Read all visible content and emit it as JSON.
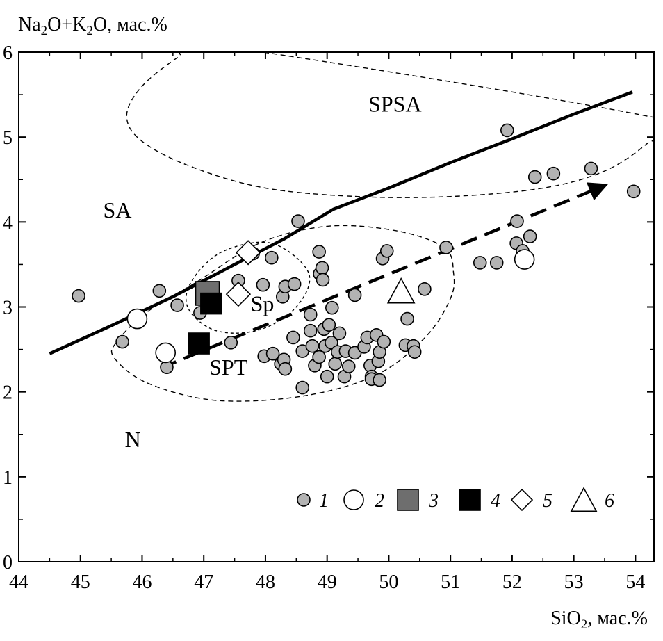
{
  "chart_data": {
    "type": "scatter",
    "xlabel": {
      "main": "SiO",
      "sub": "2",
      "rest": ", мас.%"
    },
    "ylabel": {
      "p1": "Na",
      "s1": "2",
      "p2": "O+K",
      "s2": "2",
      "p3": "O, мас.%"
    },
    "xlim": [
      44,
      54.3
    ],
    "ylim": [
      0,
      6
    ],
    "xticks": [
      "44",
      "45",
      "46",
      "47",
      "48",
      "49",
      "50",
      "51",
      "52",
      "53",
      "54"
    ],
    "yticks": [
      "0",
      "1",
      "2",
      "3",
      "4",
      "5",
      "6"
    ],
    "grid": false,
    "legend_position": "bottom-right",
    "region_labels": [
      {
        "text": "SPSA",
        "x": 50.1,
        "y": 5.3
      },
      {
        "text": "SA",
        "x": 45.6,
        "y": 4.05
      },
      {
        "text": "N",
        "x": 45.85,
        "y": 1.35
      },
      {
        "text": "SPT",
        "x": 47.4,
        "y": 2.2
      },
      {
        "text": "Sp",
        "x": 47.95,
        "y": 2.95
      }
    ],
    "boundary_line": [
      [
        44.5,
        2.45
      ],
      [
        45.5,
        2.78
      ],
      [
        46.5,
        3.12
      ],
      [
        47.5,
        3.5
      ],
      [
        48.3,
        3.8
      ],
      [
        49.1,
        4.15
      ],
      [
        50,
        4.4
      ],
      [
        51,
        4.7
      ],
      [
        52,
        4.98
      ],
      [
        53,
        5.27
      ],
      [
        53.95,
        5.53
      ]
    ],
    "trend_arrow": {
      "from": [
        46.3,
        2.28
      ],
      "to": [
        53.5,
        4.43
      ]
    },
    "ellipses": [
      {
        "name": "SPSA",
        "points": [
          [
            54.5,
            5.2
          ],
          [
            54.2,
            4.93
          ],
          [
            53.5,
            4.6
          ],
          [
            52.5,
            4.4
          ],
          [
            51,
            4.3
          ],
          [
            49.5,
            4.3
          ],
          [
            48,
            4.4
          ],
          [
            46.8,
            4.65
          ],
          [
            46,
            4.95
          ],
          [
            45.75,
            5.25
          ],
          [
            46,
            5.6
          ],
          [
            46.6,
            5.95
          ],
          [
            47,
            6.1
          ]
        ]
      },
      {
        "name": "SPT",
        "points": [
          [
            50.9,
            3.7
          ],
          [
            50.1,
            3.9
          ],
          [
            49,
            3.95
          ],
          [
            47.9,
            3.75
          ],
          [
            46.9,
            3.3
          ],
          [
            46.1,
            2.95
          ],
          [
            45.6,
            2.6
          ],
          [
            45.55,
            2.4
          ],
          [
            46.1,
            2.1
          ],
          [
            47.2,
            1.9
          ],
          [
            48.6,
            1.95
          ],
          [
            49.8,
            2.2
          ],
          [
            50.6,
            2.65
          ],
          [
            51,
            3.1
          ],
          [
            51.05,
            3.4
          ]
        ]
      },
      {
        "name": "Sp",
        "points": [
          [
            48.7,
            3.4
          ],
          [
            48.1,
            3.75
          ],
          [
            47.3,
            3.65
          ],
          [
            46.8,
            3.3
          ],
          [
            46.75,
            2.98
          ],
          [
            47.2,
            2.72
          ],
          [
            47.9,
            2.73
          ],
          [
            48.5,
            3.0
          ]
        ]
      }
    ],
    "series": [
      {
        "legend_label": "1",
        "marker": "circle",
        "fill": "#b3b3b3",
        "size": 9,
        "points": [
          [
            44.97,
            3.13
          ],
          [
            45.68,
            2.59
          ],
          [
            46.28,
            3.19
          ],
          [
            46.4,
            2.29
          ],
          [
            46.57,
            3.02
          ],
          [
            46.94,
            2.93
          ],
          [
            47.15,
            3.16
          ],
          [
            47.44,
            2.58
          ],
          [
            47.56,
            3.31
          ],
          [
            47.8,
            3.63
          ],
          [
            47.96,
            3.26
          ],
          [
            48.1,
            3.58
          ],
          [
            47.98,
            2.42
          ],
          [
            48.12,
            2.45
          ],
          [
            48.25,
            2.33
          ],
          [
            48.3,
            2.38
          ],
          [
            48.32,
            2.27
          ],
          [
            48.28,
            3.12
          ],
          [
            48.32,
            3.24
          ],
          [
            48.47,
            3.27
          ],
          [
            48.53,
            4.01
          ],
          [
            48.45,
            2.64
          ],
          [
            48.6,
            2.48
          ],
          [
            48.6,
            2.05
          ],
          [
            48.73,
            2.72
          ],
          [
            48.73,
            2.91
          ],
          [
            48.76,
            2.54
          ],
          [
            48.8,
            2.31
          ],
          [
            48.87,
            2.41
          ],
          [
            48.87,
            3.65
          ],
          [
            48.88,
            3.39
          ],
          [
            48.92,
            3.46
          ],
          [
            48.93,
            3.32
          ],
          [
            48.95,
            2.74
          ],
          [
            48.97,
            2.54
          ],
          [
            49.0,
            2.18
          ],
          [
            49.03,
            2.79
          ],
          [
            49.07,
            2.58
          ],
          [
            49.08,
            2.99
          ],
          [
            49.13,
            2.33
          ],
          [
            49.17,
            2.47
          ],
          [
            49.2,
            2.69
          ],
          [
            49.28,
            2.18
          ],
          [
            49.3,
            2.48
          ],
          [
            49.35,
            2.3
          ],
          [
            49.45,
            3.14
          ],
          [
            49.45,
            2.46
          ],
          [
            49.6,
            2.53
          ],
          [
            49.65,
            2.64
          ],
          [
            49.7,
            2.31
          ],
          [
            49.72,
            2.18
          ],
          [
            49.72,
            2.15
          ],
          [
            49.8,
            2.67
          ],
          [
            49.83,
            2.36
          ],
          [
            49.85,
            2.47
          ],
          [
            49.85,
            2.14
          ],
          [
            49.9,
            3.57
          ],
          [
            49.92,
            2.59
          ],
          [
            49.97,
            3.66
          ],
          [
            50.27,
            2.55
          ],
          [
            50.3,
            2.86
          ],
          [
            50.4,
            2.54
          ],
          [
            50.42,
            2.47
          ],
          [
            50.58,
            3.21
          ],
          [
            50.93,
            3.7
          ],
          [
            51.48,
            3.52
          ],
          [
            51.75,
            3.52
          ],
          [
            51.92,
            5.08
          ],
          [
            52.07,
            3.75
          ],
          [
            52.08,
            4.01
          ],
          [
            52.17,
            3.66
          ],
          [
            52.29,
            3.83
          ],
          [
            52.37,
            4.53
          ],
          [
            52.67,
            4.57
          ],
          [
            53.28,
            4.63
          ],
          [
            53.97,
            4.36
          ]
        ]
      },
      {
        "legend_label": "2",
        "marker": "circle",
        "fill": "#ffffff",
        "size": 14,
        "points": [
          [
            45.92,
            2.86
          ],
          [
            46.38,
            2.46
          ],
          [
            52.2,
            3.56
          ]
        ]
      },
      {
        "legend_label": "3",
        "marker": "square",
        "fill": "#6e6e6e",
        "size": 34,
        "points": [
          [
            47.06,
            3.16
          ]
        ]
      },
      {
        "legend_label": "4",
        "marker": "square",
        "fill": "#000000",
        "size": 30,
        "points": [
          [
            47.12,
            3.04
          ],
          [
            46.92,
            2.57
          ]
        ]
      },
      {
        "legend_label": "5",
        "marker": "diamond",
        "fill": "#ffffff",
        "size": 17,
        "points": [
          [
            47.72,
            3.64
          ],
          [
            47.56,
            3.15
          ]
        ]
      },
      {
        "legend_label": "6",
        "marker": "triangle",
        "fill": "#ffffff",
        "size": 20,
        "points": [
          [
            50.2,
            3.17
          ]
        ]
      }
    ]
  }
}
